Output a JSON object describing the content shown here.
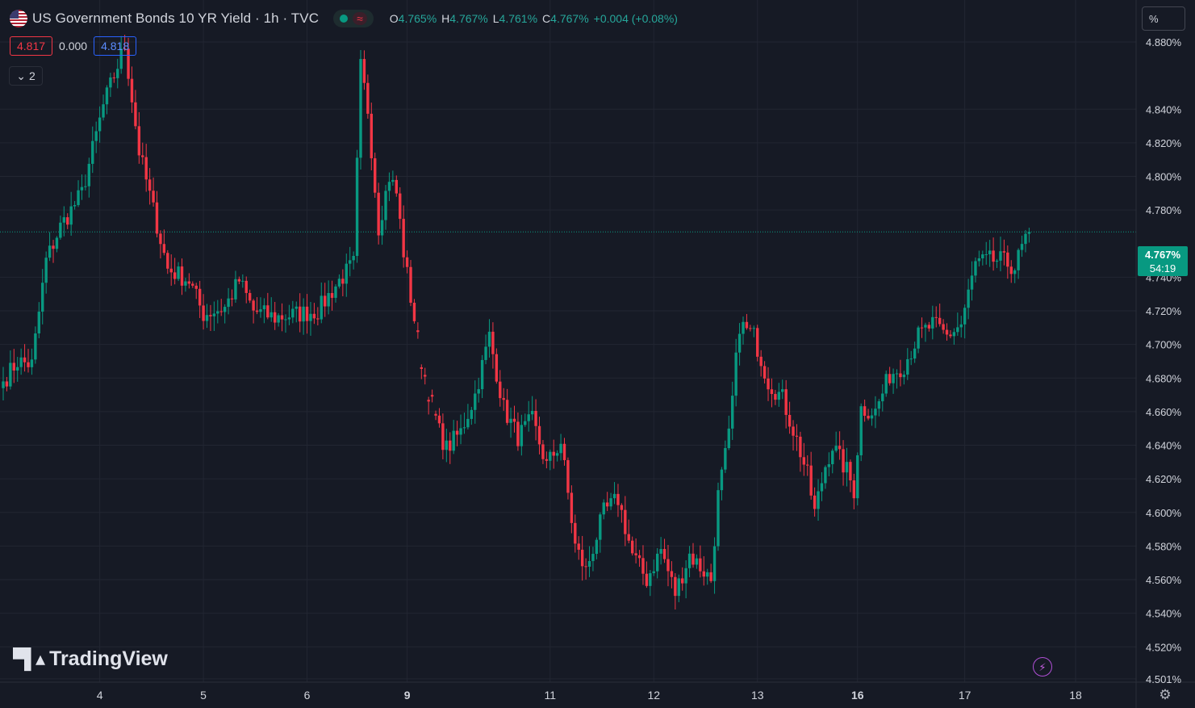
{
  "header": {
    "title": "US Government Bonds 10 YR Yield · 1h · TVC",
    "ohlc": [
      {
        "k": "O",
        "v": "4.765%"
      },
      {
        "k": "H",
        "v": "4.767%"
      },
      {
        "k": "L",
        "v": "4.761%"
      },
      {
        "k": "C",
        "v": "4.767%"
      }
    ],
    "change": "+0.004 (+0.08%)",
    "approx_symbol": "≈"
  },
  "quote": {
    "sell": "4.817",
    "spread": "0.000",
    "buy": "4.818"
  },
  "indicators_count": "2",
  "scale_mode": "%",
  "last_price": {
    "value": "4.767%",
    "countdown": "54:19"
  },
  "brand": "TradingView",
  "colors": {
    "up": "#089981",
    "down": "#f23645",
    "bg": "#161a25",
    "grid": "#222632",
    "text": "#d1d4dc"
  },
  "icons": [
    "us-flag-icon",
    "status-dot-icon",
    "chevron-down-icon",
    "bolt-icon",
    "settings-icon"
  ],
  "chart_data": {
    "type": "candlestick",
    "y_unit": "%",
    "ylim": [
      4.499,
      4.905
    ],
    "y_ticks": [
      "4.880%",
      "4.840%",
      "4.820%",
      "4.800%",
      "4.780%",
      "4.740%",
      "4.720%",
      "4.700%",
      "4.680%",
      "4.660%",
      "4.640%",
      "4.620%",
      "4.600%",
      "4.580%",
      "4.560%",
      "4.540%",
      "4.520%",
      "4.501%"
    ],
    "y_tick_values": [
      4.88,
      4.84,
      4.82,
      4.8,
      4.78,
      4.74,
      4.72,
      4.7,
      4.68,
      4.66,
      4.64,
      4.62,
      4.6,
      4.58,
      4.56,
      4.54,
      4.52,
      4.501
    ],
    "x_ticks": [
      {
        "label": "4",
        "bar": 27,
        "bold": false
      },
      {
        "label": "5",
        "bar": 56,
        "bold": false
      },
      {
        "label": "6",
        "bar": 85,
        "bold": false
      },
      {
        "label": "9",
        "bar": 113,
        "bold": true
      },
      {
        "label": "11",
        "bar": 153,
        "bold": false
      },
      {
        "label": "12",
        "bar": 182,
        "bold": false
      },
      {
        "label": "13",
        "bar": 211,
        "bold": false
      },
      {
        "label": "16",
        "bar": 239,
        "bold": true
      },
      {
        "label": "17",
        "bar": 269,
        "bold": false
      },
      {
        "label": "18",
        "bar": 300,
        "bold": false
      }
    ],
    "last_value": 4.767,
    "keypoints": [
      [
        0,
        4.678
      ],
      [
        4,
        4.69
      ],
      [
        8,
        4.688
      ],
      [
        12,
        4.75
      ],
      [
        16,
        4.77
      ],
      [
        22,
        4.79
      ],
      [
        28,
        4.842
      ],
      [
        34,
        4.878
      ],
      [
        38,
        4.815
      ],
      [
        42,
        4.78
      ],
      [
        46,
        4.745
      ],
      [
        52,
        4.738
      ],
      [
        56,
        4.718
      ],
      [
        62,
        4.722
      ],
      [
        66,
        4.738
      ],
      [
        70,
        4.72
      ],
      [
        76,
        4.716
      ],
      [
        82,
        4.718
      ],
      [
        88,
        4.72
      ],
      [
        94,
        4.738
      ],
      [
        98,
        4.748
      ],
      [
        100,
        4.865
      ],
      [
        102,
        4.84
      ],
      [
        105,
        4.77
      ],
      [
        108,
        4.8
      ],
      [
        110,
        4.79
      ],
      [
        112,
        4.755
      ],
      [
        114,
        4.728
      ],
      [
        117,
        4.69
      ],
      [
        119,
        4.672
      ],
      [
        122,
        4.648
      ],
      [
        124,
        4.638
      ],
      [
        128,
        4.648
      ],
      [
        132,
        4.67
      ],
      [
        136,
        4.705
      ],
      [
        140,
        4.662
      ],
      [
        144,
        4.645
      ],
      [
        148,
        4.655
      ],
      [
        152,
        4.628
      ],
      [
        156,
        4.642
      ],
      [
        160,
        4.58
      ],
      [
        163,
        4.565
      ],
      [
        168,
        4.6
      ],
      [
        172,
        4.608
      ],
      [
        176,
        4.575
      ],
      [
        180,
        4.56
      ],
      [
        184,
        4.578
      ],
      [
        188,
        4.552
      ],
      [
        192,
        4.575
      ],
      [
        196,
        4.565
      ],
      [
        198,
        4.56
      ],
      [
        200,
        4.61
      ],
      [
        203,
        4.645
      ],
      [
        206,
        4.712
      ],
      [
        210,
        4.705
      ],
      [
        214,
        4.678
      ],
      [
        218,
        4.668
      ],
      [
        222,
        4.643
      ],
      [
        225,
        4.622
      ],
      [
        227,
        4.6
      ],
      [
        230,
        4.628
      ],
      [
        232,
        4.64
      ],
      [
        235,
        4.628
      ],
      [
        236,
        4.625
      ],
      [
        238,
        4.613
      ],
      [
        240,
        4.662
      ],
      [
        244,
        4.66
      ],
      [
        248,
        4.682
      ],
      [
        252,
        4.688
      ],
      [
        256,
        4.705
      ],
      [
        260,
        4.712
      ],
      [
        264,
        4.705
      ],
      [
        268,
        4.712
      ],
      [
        272,
        4.748
      ],
      [
        276,
        4.75
      ],
      [
        279,
        4.75
      ],
      [
        283,
        4.746
      ],
      [
        286,
        4.763
      ],
      [
        287,
        4.767
      ]
    ],
    "gaps": [
      [
        116,
        121
      ]
    ]
  }
}
